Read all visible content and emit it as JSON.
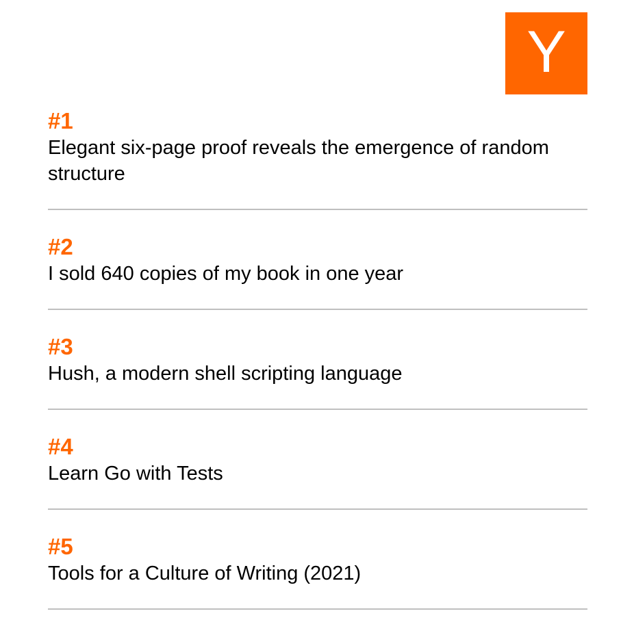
{
  "logo": {
    "letter": "Y",
    "color": "#ff6600",
    "icon": "y-combinator-logo-icon"
  },
  "stories": [
    {
      "rank": "#1",
      "title": "Elegant six-page proof reveals the emergence of random structure"
    },
    {
      "rank": "#2",
      "title": "I sold 640 copies of my book in one year"
    },
    {
      "rank": "#3",
      "title": "Hush, a modern shell scripting language"
    },
    {
      "rank": "#4",
      "title": "Learn Go with Tests"
    },
    {
      "rank": "#5",
      "title": "Tools for a Culture of Writing (2021)"
    }
  ],
  "colors": {
    "accent": "#ff6600",
    "divider": "#bfbfbf",
    "text": "#000000"
  }
}
